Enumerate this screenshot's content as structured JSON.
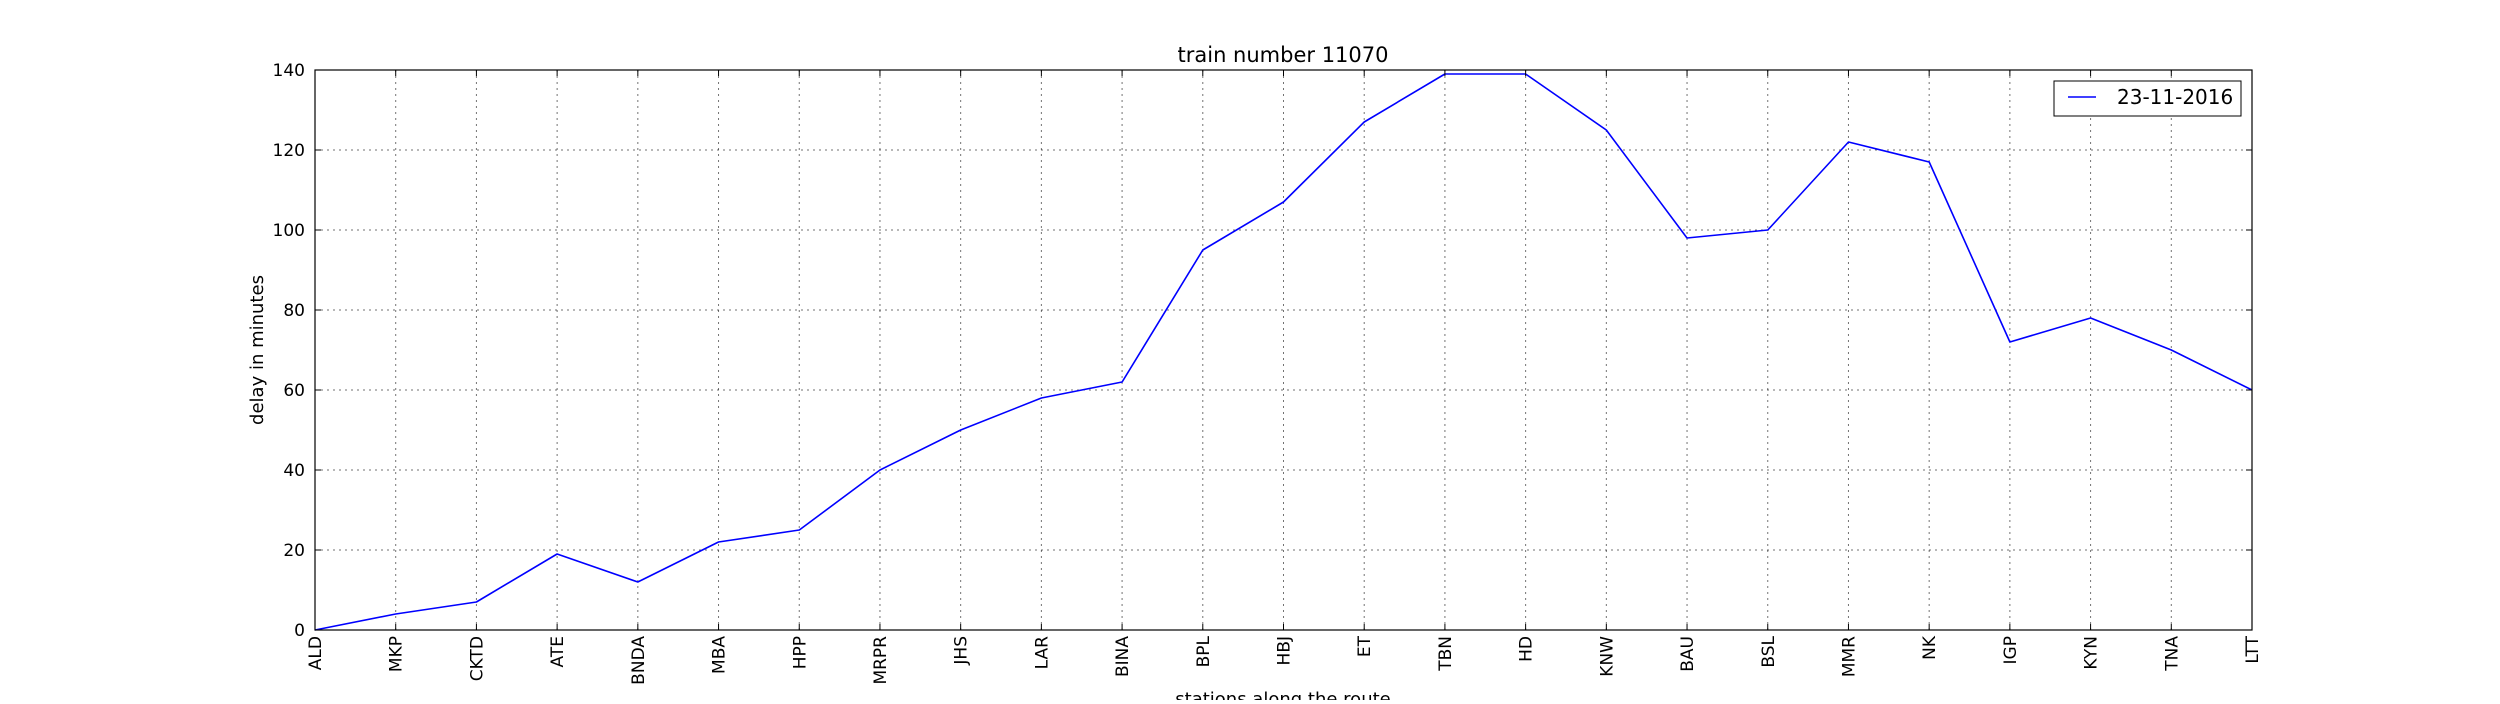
{
  "chart_data": {
    "type": "line",
    "title": "train number 11070",
    "xlabel": "stations along the route",
    "ylabel": "delay in minutes",
    "categories": [
      "ALD",
      "MKP",
      "CKTD",
      "ATE",
      "BNDA",
      "MBA",
      "HPP",
      "MRPR",
      "JHS",
      "LAR",
      "BINA",
      "BPL",
      "HBJ",
      "ET",
      "TBN",
      "HD",
      "KNW",
      "BAU",
      "BSL",
      "MMR",
      "NK",
      "IGP",
      "KYN",
      "TNA",
      "LTT"
    ],
    "series": [
      {
        "name": "23-11-2016",
        "color": "#0000ff",
        "values": [
          0,
          4,
          7,
          19,
          12,
          22,
          25,
          40,
          50,
          58,
          62,
          95,
          107,
          127,
          139,
          139,
          125,
          98,
          100,
          122,
          117,
          72,
          78,
          70,
          60
        ]
      }
    ],
    "ylim": [
      0,
      140
    ],
    "yticks": [
      0,
      20,
      40,
      60,
      80,
      100,
      120,
      140
    ],
    "grid": true,
    "legend_position": "top-right"
  }
}
